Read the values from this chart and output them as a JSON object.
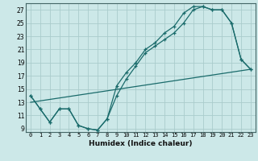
{
  "title": "",
  "xlabel": "Humidex (Indice chaleur)",
  "bg_color": "#cce8e8",
  "grid_color": "#aacccc",
  "line_color": "#1a6b6b",
  "xlim": [
    -0.5,
    23.5
  ],
  "ylim": [
    8.5,
    28
  ],
  "xticks": [
    0,
    1,
    2,
    3,
    4,
    5,
    6,
    7,
    8,
    9,
    10,
    11,
    12,
    13,
    14,
    15,
    16,
    17,
    18,
    19,
    20,
    21,
    22,
    23
  ],
  "yticks": [
    9,
    11,
    13,
    15,
    17,
    19,
    21,
    23,
    25,
    27
  ],
  "line1_x": [
    0,
    1,
    2,
    3,
    4,
    5,
    6,
    7,
    8,
    9,
    10,
    11,
    12,
    13,
    14,
    15,
    16,
    17,
    18,
    19,
    20,
    21,
    22,
    23
  ],
  "line1_y": [
    14,
    12,
    10,
    12,
    12,
    9.5,
    9,
    8.8,
    10.5,
    15.5,
    17.5,
    19,
    21,
    22,
    23.5,
    24.5,
    26.5,
    27.5,
    27.5,
    27,
    27,
    25,
    19.5,
    18
  ],
  "line2_x": [
    0,
    1,
    2,
    3,
    4,
    5,
    6,
    7,
    8,
    9,
    10,
    11,
    12,
    13,
    14,
    15,
    16,
    17,
    18,
    19,
    20,
    21,
    22,
    23
  ],
  "line2_y": [
    14,
    12,
    10,
    12,
    12,
    9.5,
    9,
    8.8,
    10.5,
    14,
    16.5,
    18.5,
    20.5,
    21.5,
    22.5,
    23.5,
    25,
    27,
    27.5,
    27,
    27,
    25,
    19.5,
    18
  ],
  "line3_x": [
    0,
    23
  ],
  "line3_y": [
    13,
    18
  ]
}
